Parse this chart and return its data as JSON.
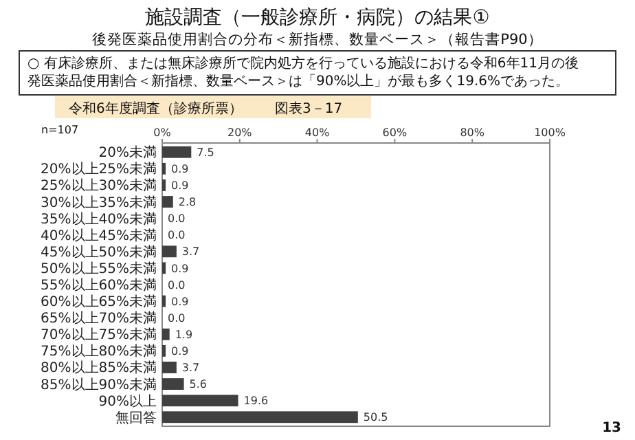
{
  "chart_data": {
    "type": "bar",
    "orientation": "horizontal",
    "title": "施設調査（一般診療所・病院）の結果①",
    "subtitle": "後発医薬品使用割合の分布＜新指標、数量ベース＞（報告書P90）",
    "annotations": [
      "○ 有床診療所、または無床診療所で院内処方を行っている施設における令和6年11月の後発医薬品使用割合＜新指標、数量ベース＞は「90%以上」が最も多く19.6%であった。",
      "令和6年度調査（診療所票）",
      "図表3－17",
      "n=107",
      "13"
    ],
    "categories": [
      "20%未満",
      "20%以上25%未満",
      "25%以上30%未満",
      "30%以上35%未満",
      "35%以上40%未満",
      "40%以上45%未満",
      "45%以上50%未満",
      "50%以上55%未満",
      "55%以上60%未満",
      "60%以上65%未満",
      "65%以上70%未満",
      "70%以上75%未満",
      "75%以上80%未満",
      "80%以上85%未満",
      "85%以上90%未満",
      "90%以上",
      "無回答"
    ],
    "values": [
      7.5,
      0.9,
      0.9,
      2.8,
      0.0,
      0.0,
      3.7,
      0.9,
      0.0,
      0.9,
      0.0,
      1.9,
      0.9,
      3.7,
      5.6,
      19.6,
      50.5
    ],
    "color": "#404040",
    "xlim": [
      0,
      100
    ],
    "xticks": [
      {
        "value": 0,
        "label": "0%"
      },
      {
        "value": 20,
        "label": "20%"
      },
      {
        "value": 40,
        "label": "40%"
      },
      {
        "value": 60,
        "label": "60%"
      },
      {
        "value": 80,
        "label": "80%"
      },
      {
        "value": 100,
        "label": "100%"
      }
    ],
    "value_labels": [
      "7.5",
      "0.9",
      "0.9",
      "2.8",
      "0.0",
      "0.0",
      "3.7",
      "0.9",
      "0.0",
      "0.9",
      "0.0",
      "1.9",
      "0.9",
      "3.7",
      "5.6",
      "19.6",
      "50.5"
    ]
  }
}
